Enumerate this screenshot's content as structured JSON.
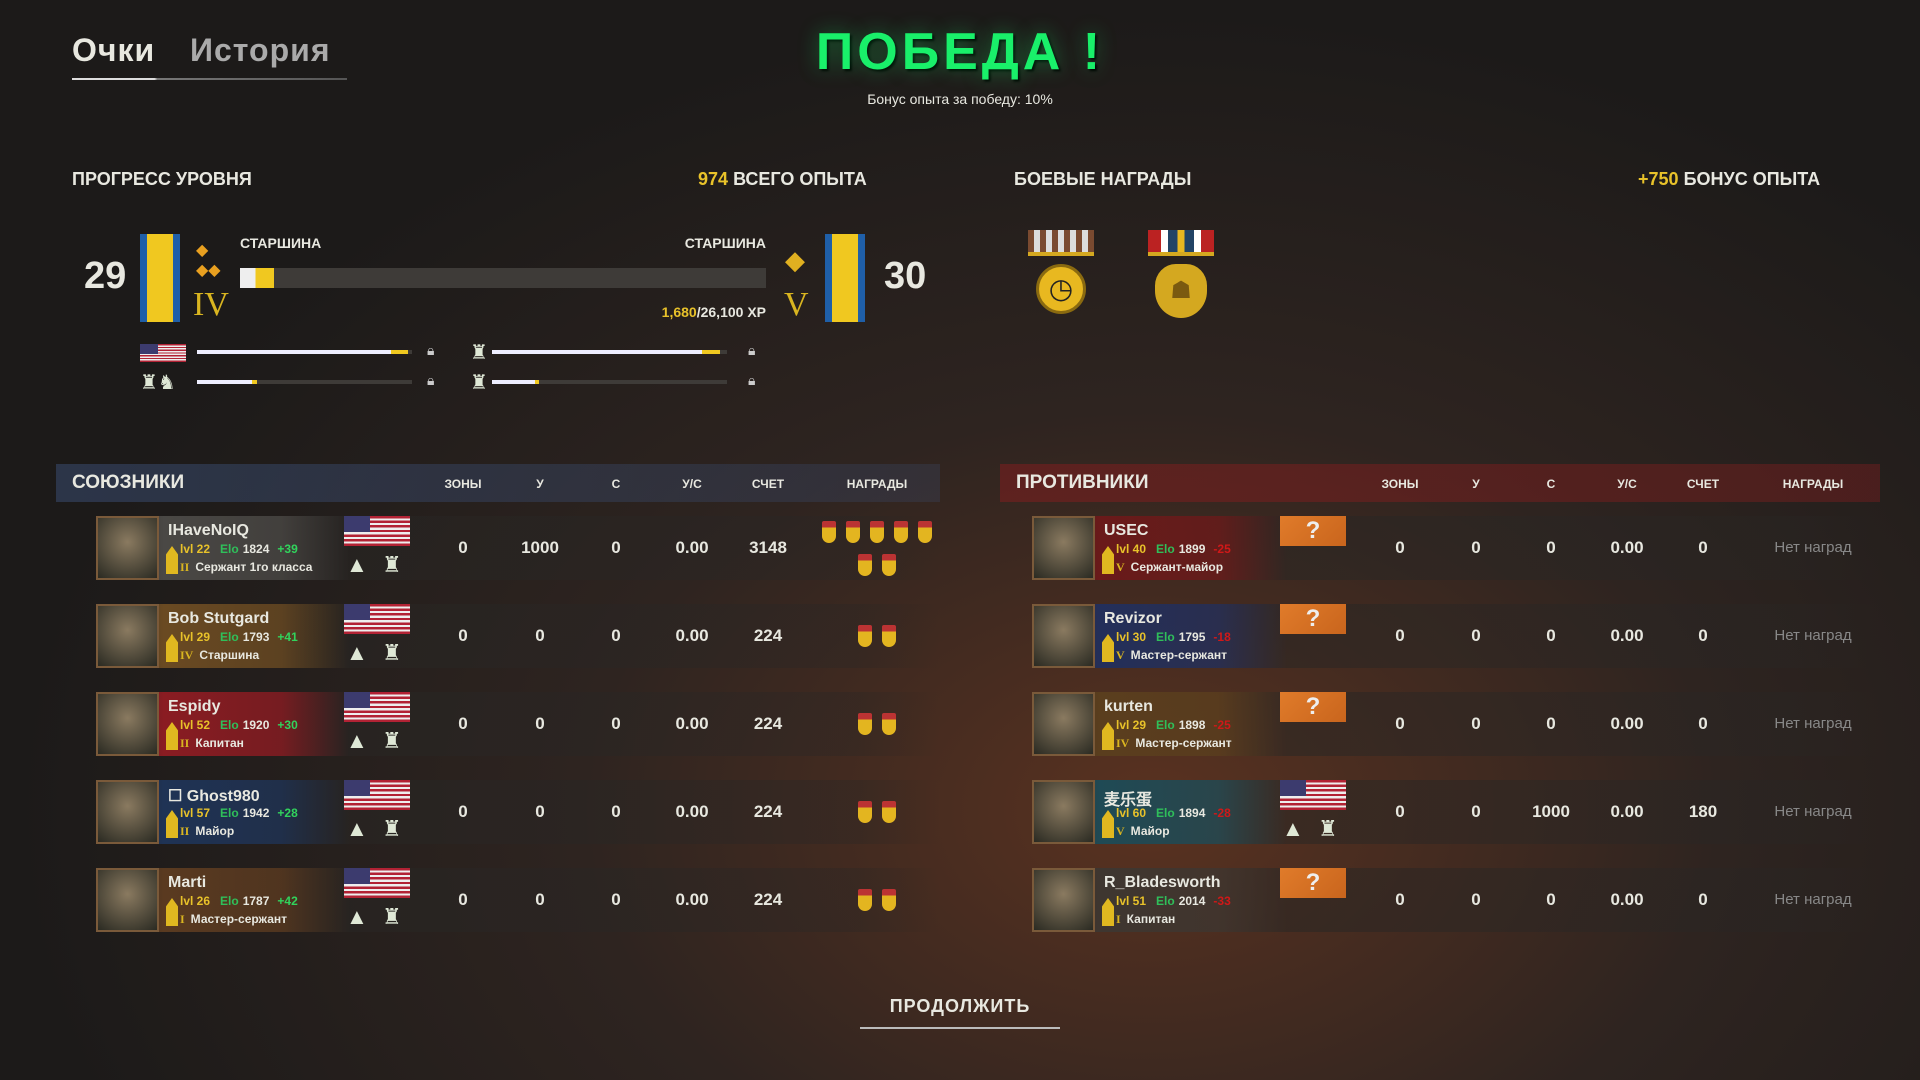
{
  "tabs": [
    "Очки",
    "История"
  ],
  "title": "ПОБЕДА !",
  "subtitle": "Бонус опыта за победу: 10%",
  "progress": {
    "header": "ПРОГРЕСС УРОВНЯ",
    "total_xp_value": "974",
    "total_xp_label": "ВСЕГО ОПЫТА",
    "current_level": "29",
    "current_rank": "СТАРШИНА",
    "current_tier": "IV",
    "next_level": "30",
    "next_rank": "СТАРШИНА",
    "next_tier": "V",
    "xp_current": "1,680",
    "xp_total": "/26,100 XP",
    "fraction": 0.064,
    "sub_bars": [
      {
        "icon": "us-flag-icon",
        "fraction": 0.98
      },
      {
        "icon": "infantry-badge-icon",
        "fraction": 0.97
      },
      {
        "icon": "infantry-cavalry-badge-icon",
        "fraction": 0.28
      },
      {
        "icon": "cavalry-badge-icon",
        "fraction": 0.2
      }
    ]
  },
  "awards": {
    "header": "БОЕВЫЕ НАГРАДЫ",
    "bonus_value": "+750",
    "bonus_label": "БОНУС ОПЫТА",
    "medals": [
      "clock-medal-icon",
      "bulldog-medal-icon"
    ]
  },
  "columns": [
    "ЗОНЫ",
    "У",
    "С",
    "У/С",
    "СЧЕТ",
    "НАГРАДЫ"
  ],
  "allies": {
    "header": "СОЮЗНИКИ",
    "players": [
      {
        "name": "IHaveNoIQ",
        "lvl": "lvl 22",
        "elo_label": "Elo",
        "elo": "1824",
        "delta": "+39",
        "rank": "Сержант 1го класса",
        "tier": "II",
        "stats": [
          "0",
          "1000",
          "0",
          "0.00",
          "3148"
        ],
        "medals": 7,
        "bg": "#4a4845"
      },
      {
        "name": "Bob Stutgard",
        "lvl": "lvl 29",
        "elo_label": "Elo",
        "elo": "1793",
        "delta": "+41",
        "rank": "Старшина",
        "tier": "IV",
        "stats": [
          "0",
          "0",
          "0",
          "0.00",
          "224"
        ],
        "medals": 2,
        "bg": "#6a4a22"
      },
      {
        "name": "Espidy",
        "lvl": "lvl 52",
        "elo_label": "Elo",
        "elo": "1920",
        "delta": "+30",
        "rank": "Капитан",
        "tier": "II",
        "stats": [
          "0",
          "0",
          "0",
          "0.00",
          "224"
        ],
        "medals": 2,
        "bg": "#8a1c22"
      },
      {
        "name": "☐ Ghost980",
        "lvl": "lvl 57",
        "elo_label": "Elo",
        "elo": "1942",
        "delta": "+28",
        "rank": "Майор",
        "tier": "II",
        "stats": [
          "0",
          "0",
          "0",
          "0.00",
          "224"
        ],
        "medals": 2,
        "bg": "#1f3355"
      },
      {
        "name": "Marti",
        "lvl": "lvl 26",
        "elo_label": "Elo",
        "elo": "1787",
        "delta": "+42",
        "rank": "Мастер-сержант",
        "tier": "I",
        "stats": [
          "0",
          "0",
          "0",
          "0.00",
          "224"
        ],
        "medals": 2,
        "bg": "#5a3a20"
      }
    ]
  },
  "enemies": {
    "header": "ПРОТИВНИКИ",
    "no_awards": "Нет наград",
    "players": [
      {
        "name": "USEC",
        "lvl": "lvl 40",
        "elo_label": "Elo",
        "elo": "1899",
        "delta": "-25",
        "rank": "Сержант-майор",
        "tier": "V",
        "stats": [
          "0",
          "0",
          "0",
          "0.00",
          "0"
        ],
        "flag": "unknown",
        "bg": "#6a1a1a"
      },
      {
        "name": "Revizor",
        "lvl": "lvl 30",
        "elo_label": "Elo",
        "elo": "1795",
        "delta": "-18",
        "rank": "Мастер-сержант",
        "tier": "V",
        "stats": [
          "0",
          "0",
          "0",
          "0.00",
          "0"
        ],
        "flag": "unknown",
        "bg": "#232f5a"
      },
      {
        "name": "kurten",
        "lvl": "lvl 29",
        "elo_label": "Elo",
        "elo": "1898",
        "delta": "-25",
        "rank": "Мастер-сержант",
        "tier": "IV",
        "stats": [
          "0",
          "0",
          "0",
          "0.00",
          "0"
        ],
        "flag": "unknown",
        "bg": "#5a3e1e"
      },
      {
        "name": "麦乐蛋",
        "lvl": "lvl 60",
        "elo_label": "Elo",
        "elo": "1894",
        "delta": "-28",
        "rank": "Майор",
        "tier": "V",
        "stats": [
          "0",
          "0",
          "1000",
          "0.00",
          "180"
        ],
        "flag": "us",
        "bg": "#1f4a55"
      },
      {
        "name": "R_Bladesworth",
        "lvl": "lvl 51",
        "elo_label": "Elo",
        "elo": "2014",
        "delta": "-33",
        "rank": "Капитан",
        "tier": "I",
        "stats": [
          "0",
          "0",
          "0",
          "0.00",
          "0"
        ],
        "flag": "unknown",
        "bg": "#3e3630"
      }
    ]
  },
  "continue_label": "ПРОДОЛЖИТЬ"
}
